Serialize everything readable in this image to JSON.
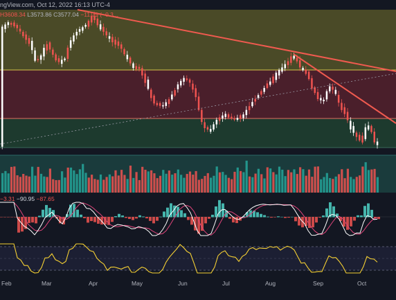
{
  "header": {
    "source_text": "ngView.com, Oct 12, 2022 16:13 UTC-4"
  },
  "ohlc": {
    "high_fragment": "H3608.34",
    "low": "L3573.86",
    "close": "C3577.04",
    "change": "−11.79 (−0.3..."
  },
  "macd": {
    "histogram": "−3.31",
    "macd": "−90.95",
    "signal": "−87.65"
  },
  "x_axis": {
    "months": [
      "Feb",
      "Mar",
      "Apr",
      "May",
      "Jun",
      "Jul",
      "Aug",
      "Sep",
      "Oct"
    ]
  },
  "colors": {
    "background": "#131722",
    "zone_top": "#4a4a27",
    "zone_middle": "#4a1f2b",
    "zone_bottom": "#1d3a2e",
    "zone_volume": "#1a3b3c",
    "trendline": "#f05a4f",
    "candle_up": "#ffffff",
    "candle_down": "#ef5350",
    "volume_up": "#26a69a",
    "volume_down": "#ef5350",
    "rsi": "#f5d033",
    "macd_line": "#ffffff",
    "signal_line": "#e0457b"
  }
}
